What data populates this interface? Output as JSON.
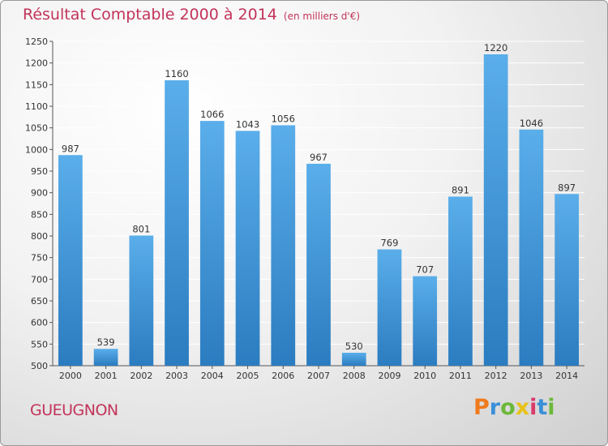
{
  "header": {
    "title": "Résultat Comptable 2000 à 2014",
    "unit": "(en milliers d'€)"
  },
  "footer": {
    "commune": "GUEUGNON",
    "brand_letters": [
      {
        "ch": "P",
        "color": "#f07a1c"
      },
      {
        "ch": "r",
        "color": "#3a8fd8"
      },
      {
        "ch": "o",
        "color": "#6bb83a"
      },
      {
        "ch": "x",
        "color": "#e8c21a"
      },
      {
        "ch": "i",
        "color": "#d93a6a"
      },
      {
        "ch": "t",
        "color": "#3a8fd8"
      },
      {
        "ch": "i",
        "color": "#6bb83a"
      }
    ]
  },
  "colors": {
    "bar_top": "#5aaeea",
    "bar_bottom": "#2b7cc0",
    "title": "#c2335a",
    "grid": "#ffffff"
  },
  "chart_data": {
    "type": "bar",
    "title": "Résultat Comptable 2000 à 2014",
    "subtitle": "(en milliers d'€)",
    "categories": [
      "2000",
      "2001",
      "2002",
      "2003",
      "2004",
      "2005",
      "2006",
      "2007",
      "2008",
      "2009",
      "2010",
      "2011",
      "2012",
      "2013",
      "2014"
    ],
    "values": [
      987,
      539,
      801,
      1160,
      1066,
      1043,
      1056,
      967,
      530,
      769,
      707,
      891,
      1220,
      1046,
      897
    ],
    "ylim": [
      500,
      1250
    ],
    "yticks": [
      500,
      550,
      600,
      650,
      700,
      750,
      800,
      850,
      900,
      950,
      1000,
      1050,
      1100,
      1150,
      1200,
      1250
    ],
    "grid": true,
    "data_labels": true
  }
}
